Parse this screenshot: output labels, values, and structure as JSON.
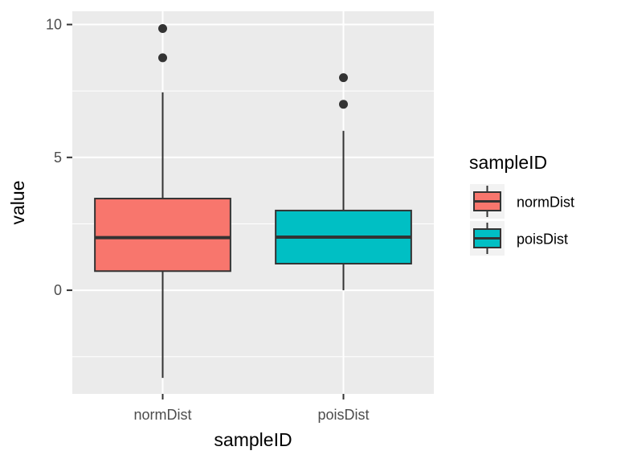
{
  "chart_data": {
    "type": "boxplot",
    "xlabel": "sampleID",
    "ylabel": "value",
    "ylim": [
      -3.9,
      10.5
    ],
    "yticks": [
      0,
      5,
      10
    ],
    "categories": [
      "normDist",
      "poisDist"
    ],
    "series": [
      {
        "name": "normDist",
        "color": "#F8766D",
        "whisker_low": -3.3,
        "q1": 0.72,
        "median": 1.98,
        "q3": 3.45,
        "whisker_high": 7.45,
        "outliers": [
          8.75,
          9.85
        ]
      },
      {
        "name": "poisDist",
        "color": "#00BFC4",
        "whisker_low": 0,
        "q1": 1,
        "median": 2,
        "q3": 3,
        "whisker_high": 6,
        "outliers": [
          7,
          8
        ]
      }
    ],
    "legend": {
      "title": "sampleID",
      "position": "right",
      "items": [
        "normDist",
        "poisDist"
      ]
    },
    "panel_background": "#EBEBEB",
    "grid": true
  }
}
